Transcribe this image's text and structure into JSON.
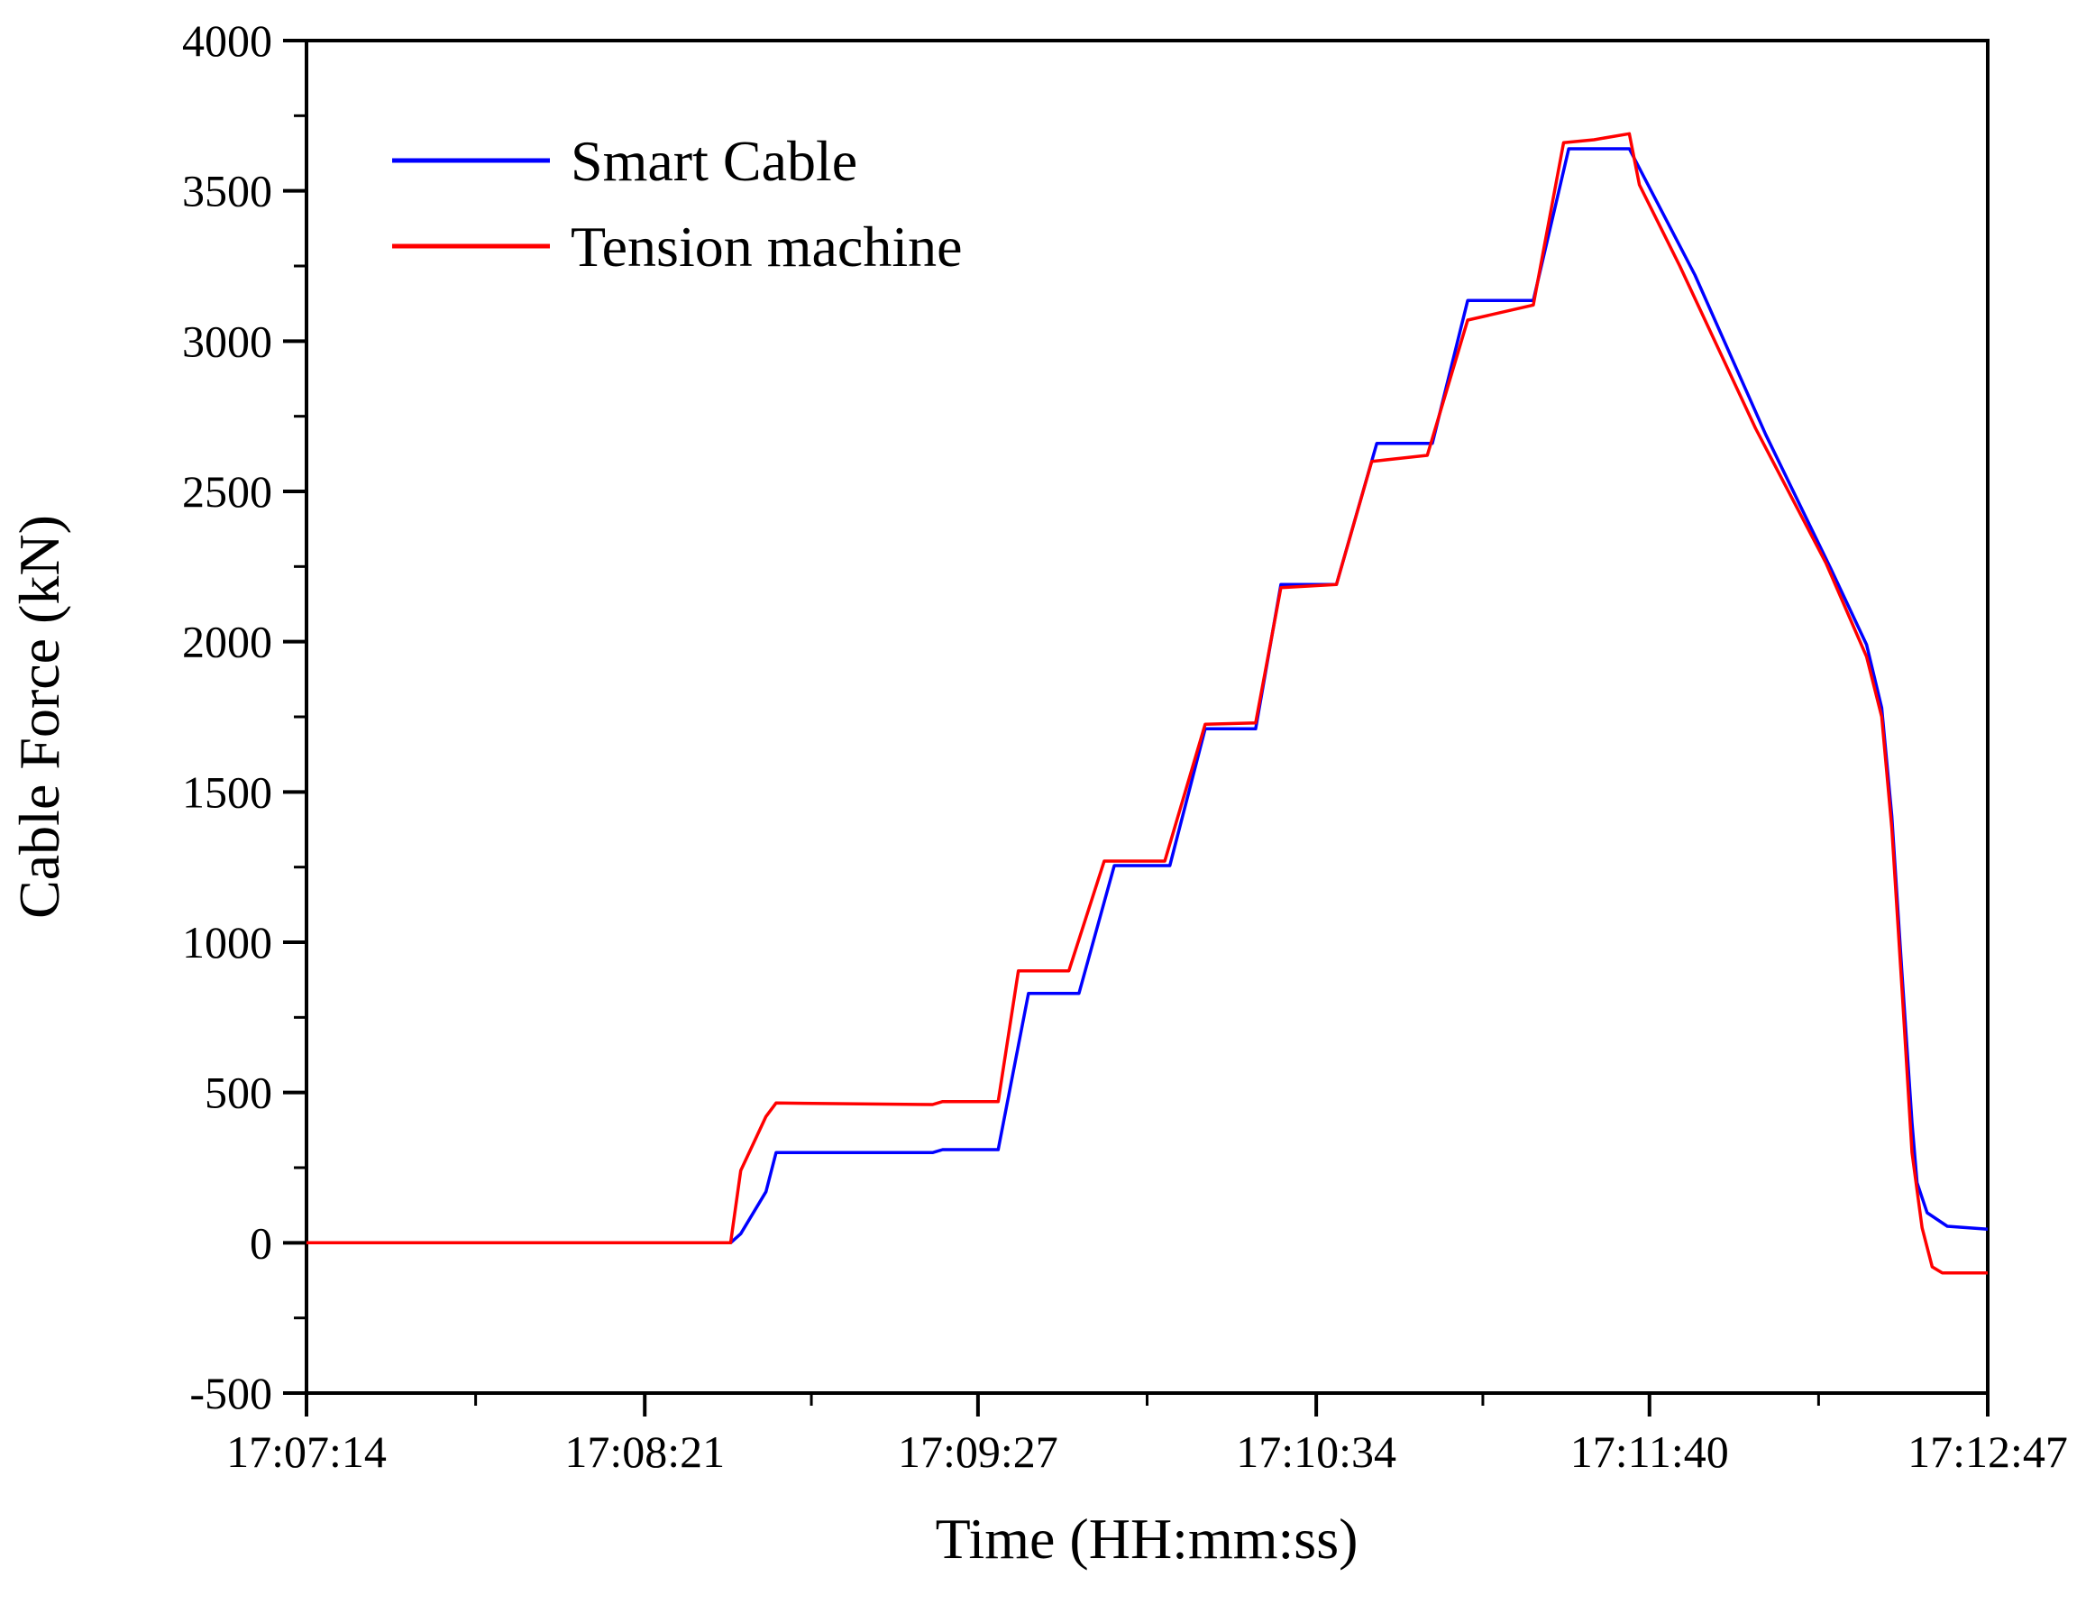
{
  "chart_data": {
    "type": "line",
    "xlabel": "Time (HH:mm:ss)",
    "ylabel": "Cable Force (kN)",
    "xlim": [
      "17:07:14",
      "17:12:47"
    ],
    "ylim": [
      -500,
      4000
    ],
    "x_ticks": [
      "17:07:14",
      "17:08:21",
      "17:09:27",
      "17:10:34",
      "17:11:40",
      "17:12:47"
    ],
    "y_ticks": [
      -500,
      0,
      500,
      1000,
      1500,
      2000,
      2500,
      3000,
      3500,
      4000
    ],
    "grid": false,
    "legend_position": "top-left",
    "series": [
      {
        "name": "Smart Cable",
        "color": "#0000ff",
        "points": [
          [
            "17:07:14",
            0
          ],
          [
            "17:08:21",
            0
          ],
          [
            "17:08:38",
            0
          ],
          [
            "17:08:40",
            30
          ],
          [
            "17:08:45",
            170
          ],
          [
            "17:08:47",
            300
          ],
          [
            "17:09:18",
            300
          ],
          [
            "17:09:20",
            310
          ],
          [
            "17:09:23",
            310
          ],
          [
            "17:09:31",
            310
          ],
          [
            "17:09:37",
            830
          ],
          [
            "17:09:47",
            830
          ],
          [
            "17:09:54",
            1255
          ],
          [
            "17:10:05",
            1255
          ],
          [
            "17:10:12",
            1710
          ],
          [
            "17:10:22",
            1710
          ],
          [
            "17:10:27",
            2190
          ],
          [
            "17:10:38",
            2190
          ],
          [
            "17:10:46",
            2660
          ],
          [
            "17:10:57",
            2660
          ],
          [
            "17:11:04",
            3135
          ],
          [
            "17:11:17",
            3135
          ],
          [
            "17:11:24",
            3640
          ],
          [
            "17:11:36",
            3640
          ],
          [
            "17:11:49",
            3220
          ],
          [
            "17:12:03",
            2690
          ],
          [
            "17:12:16",
            2240
          ],
          [
            "17:12:23",
            1990
          ],
          [
            "17:12:26",
            1780
          ],
          [
            "17:12:28",
            1420
          ],
          [
            "17:12:30",
            900
          ],
          [
            "17:12:32",
            400
          ],
          [
            "17:12:33",
            200
          ],
          [
            "17:12:35",
            100
          ],
          [
            "17:12:39",
            55
          ],
          [
            "17:12:47",
            45
          ]
        ]
      },
      {
        "name": "Tension machine",
        "color": "#ff0000",
        "points": [
          [
            "17:07:14",
            0
          ],
          [
            "17:08:21",
            0
          ],
          [
            "17:08:38",
            0
          ],
          [
            "17:08:40",
            240
          ],
          [
            "17:08:45",
            420
          ],
          [
            "17:08:47",
            465
          ],
          [
            "17:09:18",
            460
          ],
          [
            "17:09:20",
            470
          ],
          [
            "17:09:23",
            470
          ],
          [
            "17:09:31",
            470
          ],
          [
            "17:09:35",
            905
          ],
          [
            "17:09:45",
            905
          ],
          [
            "17:09:52",
            1270
          ],
          [
            "17:10:04",
            1270
          ],
          [
            "17:10:12",
            1725
          ],
          [
            "17:10:22",
            1730
          ],
          [
            "17:10:27",
            2180
          ],
          [
            "17:10:38",
            2190
          ],
          [
            "17:10:45",
            2600
          ],
          [
            "17:10:56",
            2620
          ],
          [
            "17:11:04",
            3070
          ],
          [
            "17:11:17",
            3120
          ],
          [
            "17:11:23",
            3660
          ],
          [
            "17:11:29",
            3670
          ],
          [
            "17:11:36",
            3690
          ],
          [
            "17:11:38",
            3520
          ],
          [
            "17:11:46",
            3250
          ],
          [
            "17:12:01",
            2710
          ],
          [
            "17:12:15",
            2260
          ],
          [
            "17:12:23",
            1950
          ],
          [
            "17:12:26",
            1750
          ],
          [
            "17:12:28",
            1380
          ],
          [
            "17:12:30",
            850
          ],
          [
            "17:12:32",
            300
          ],
          [
            "17:12:34",
            50
          ],
          [
            "17:12:36",
            -80
          ],
          [
            "17:12:38",
            -100
          ],
          [
            "17:12:47",
            -100
          ]
        ]
      }
    ]
  }
}
